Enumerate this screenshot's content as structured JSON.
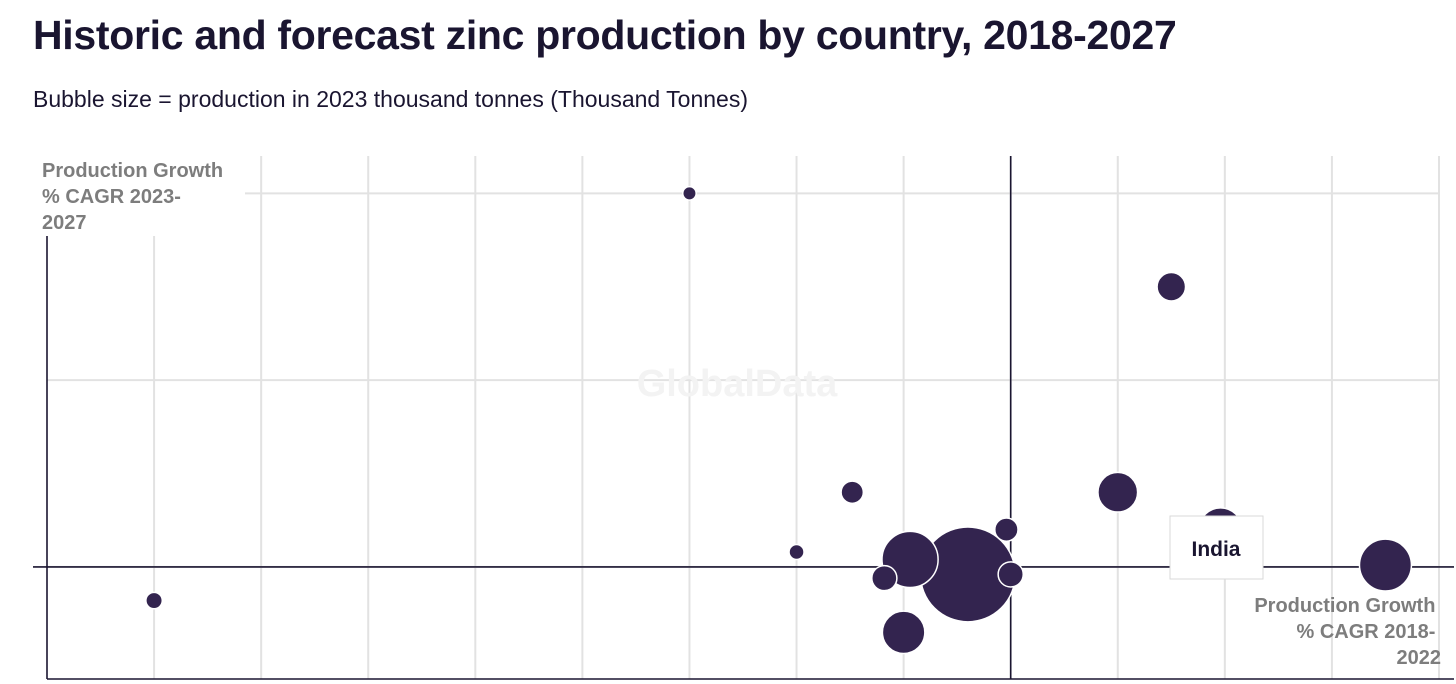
{
  "chart_data": {
    "type": "scatter",
    "title": "Historic and forecast zinc production by country, 2018-2027",
    "subtitle": "Bubble size = production in 2023 thousand tonnes (Thousand Tonnes)",
    "xlabel": "Production Growth % CAGR 2018-2022",
    "ylabel": "Production Growth % CAGR 2023-2027",
    "xlabel_lines": [
      "Production Growth",
      "% CAGR 2018-",
      "2022"
    ],
    "ylabel_lines": [
      "Production Growth",
      "% CAGR 2023-",
      "2027"
    ],
    "xlim": [
      -45,
      20
    ],
    "ylim": [
      -6,
      22
    ],
    "x_gridlines": [
      -40,
      -35,
      -30,
      -25,
      -20,
      -15,
      -10,
      -5,
      0,
      5,
      10,
      15,
      20
    ],
    "y_gridlines": [
      0,
      10,
      20
    ],
    "grid": true,
    "watermark": "GlobalData",
    "points": [
      {
        "x": -40.0,
        "y": -1.8,
        "size": 30
      },
      {
        "x": -15.0,
        "y": 20.0,
        "size": 20
      },
      {
        "x": -10.0,
        "y": 0.8,
        "size": 25
      },
      {
        "x": -7.4,
        "y": 4.0,
        "size": 55
      },
      {
        "x": -5.9,
        "y": -0.6,
        "size": 70
      },
      {
        "x": -5.0,
        "y": -3.5,
        "size": 200
      },
      {
        "x": -4.7,
        "y": 0.4,
        "size": 350
      },
      {
        "x": -2.0,
        "y": -0.4,
        "size": 1000
      },
      {
        "x": -0.2,
        "y": 2.0,
        "size": 60
      },
      {
        "x": 0.0,
        "y": -0.4,
        "size": 70
      },
      {
        "x": 5.0,
        "y": 4.0,
        "size": 175
      },
      {
        "x": 7.5,
        "y": 15.0,
        "size": 90
      },
      {
        "x": 9.8,
        "y": 2.0,
        "size": 210,
        "label": "India"
      },
      {
        "x": 17.5,
        "y": 0.1,
        "size": 300
      }
    ],
    "tooltip": {
      "label": "India"
    },
    "colors": {
      "bubble": "#33244f",
      "grid": "#e2e2e2",
      "axis": "#1a1530"
    }
  }
}
